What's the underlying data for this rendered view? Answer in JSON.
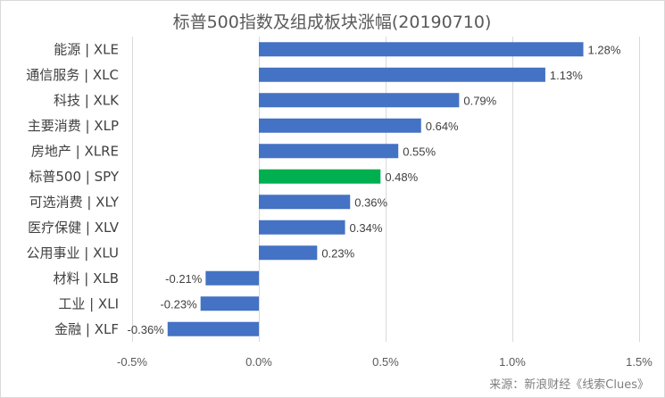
{
  "chart_data": {
    "type": "bar",
    "orientation": "horizontal",
    "title": "标普500指数及组成板块涨幅(20190710)",
    "categories": [
      "能源 | XLE",
      "通信服务 | XLC",
      "科技 | XLK",
      "主要消费 | XLP",
      "房地产 | XLRE",
      "标普500 | SPY",
      "可选消费 | XLY",
      "医疗保健 | XLV",
      "公用事业 | XLU",
      "材料 | XLB",
      "工业 | XLI",
      "金融 | XLF"
    ],
    "values": [
      1.28,
      1.13,
      0.79,
      0.64,
      0.55,
      0.48,
      0.36,
      0.34,
      0.23,
      -0.21,
      -0.23,
      -0.36
    ],
    "value_labels": [
      "1.28%",
      "1.13%",
      "0.79%",
      "0.64%",
      "0.55%",
      "0.48%",
      "0.36%",
      "0.34%",
      "0.23%",
      "-0.21%",
      "-0.23%",
      "-0.36%"
    ],
    "xlim": [
      -0.5,
      1.5
    ],
    "xticks": [
      -0.5,
      0,
      0.5,
      1.0,
      1.5
    ],
    "xtick_labels": [
      "-0.5%",
      "0.0%",
      "0.5%",
      "1.0%",
      "1.5%"
    ],
    "grid": true,
    "colors": {
      "default": "#4472c4",
      "highlight": "#00b050"
    },
    "highlight_index": 5
  },
  "source": "来源：新浪财经《线索Clues》"
}
